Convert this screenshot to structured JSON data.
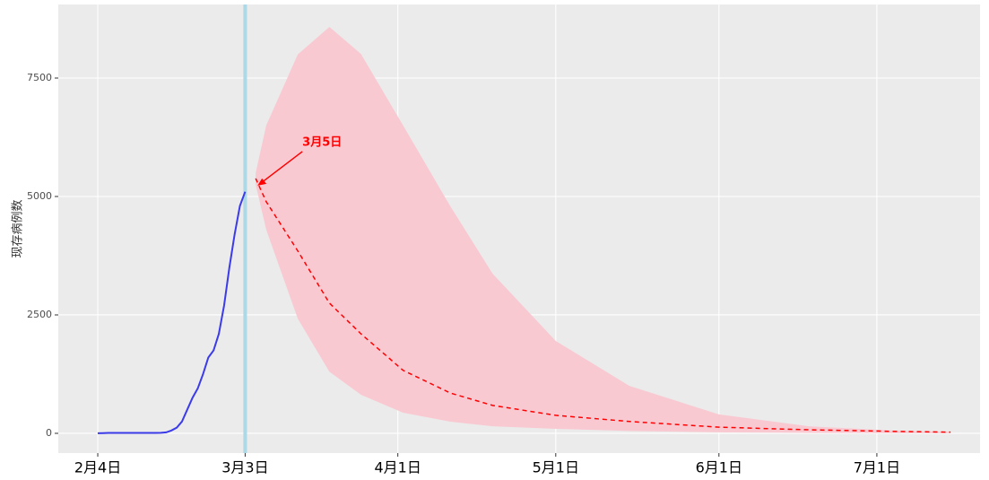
{
  "chart_data": {
    "type": "line",
    "y_label": "现存病例数",
    "xlim": [
      -7.5,
      167.6
    ],
    "ylim": [
      -417,
      9053
    ],
    "xticks": [
      {
        "value": 0,
        "label": "2月4日"
      },
      {
        "value": 28,
        "label": "3月3日"
      },
      {
        "value": 57,
        "label": "4月1日"
      },
      {
        "value": 87,
        "label": "5月1日"
      },
      {
        "value": 118,
        "label": "6月1日"
      },
      {
        "value": 148,
        "label": "7月1日"
      }
    ],
    "yticks": [
      0,
      2500,
      5000,
      7500
    ],
    "grid": true,
    "vline": 28,
    "vline_color": "#add8e6",
    "series": [
      {
        "color": "#3b3bea",
        "x": [
          0,
          1,
          2,
          3,
          4,
          5,
          6,
          7,
          8,
          9,
          10,
          11,
          12,
          13,
          14,
          15,
          16,
          17,
          18,
          19,
          20,
          21,
          22,
          23,
          24,
          25,
          26,
          27,
          28
        ],
        "values": [
          2,
          5,
          8,
          10,
          10,
          10,
          10,
          8,
          8,
          8,
          10,
          10,
          12,
          20,
          60,
          120,
          250,
          500,
          750,
          950,
          1250,
          1600,
          1750,
          2100,
          2700,
          3500,
          4200,
          4800,
          5100
        ]
      },
      {
        "color": "#ff0000",
        "dash": true,
        "band_color": "#f9c9d2",
        "x": [
          30,
          32,
          38,
          44,
          50,
          58,
          67,
          75,
          87,
          101,
          118,
          135,
          152,
          162
        ],
        "values": [
          5380,
          4890,
          3850,
          2750,
          2100,
          1330,
          850,
          590,
          380,
          250,
          130,
          75,
          40,
          25
        ],
        "lower": [
          5250,
          4300,
          2420,
          1300,
          815,
          435,
          245,
          150,
          95,
          50,
          20,
          10,
          5,
          5
        ],
        "upper": [
          5500,
          6500,
          8000,
          8580,
          8010,
          6500,
          4790,
          3370,
          1950,
          1000,
          400,
          150,
          55,
          30
        ]
      }
    ],
    "annotation": {
      "text": "3月5日",
      "color": "#ff0000"
    }
  }
}
